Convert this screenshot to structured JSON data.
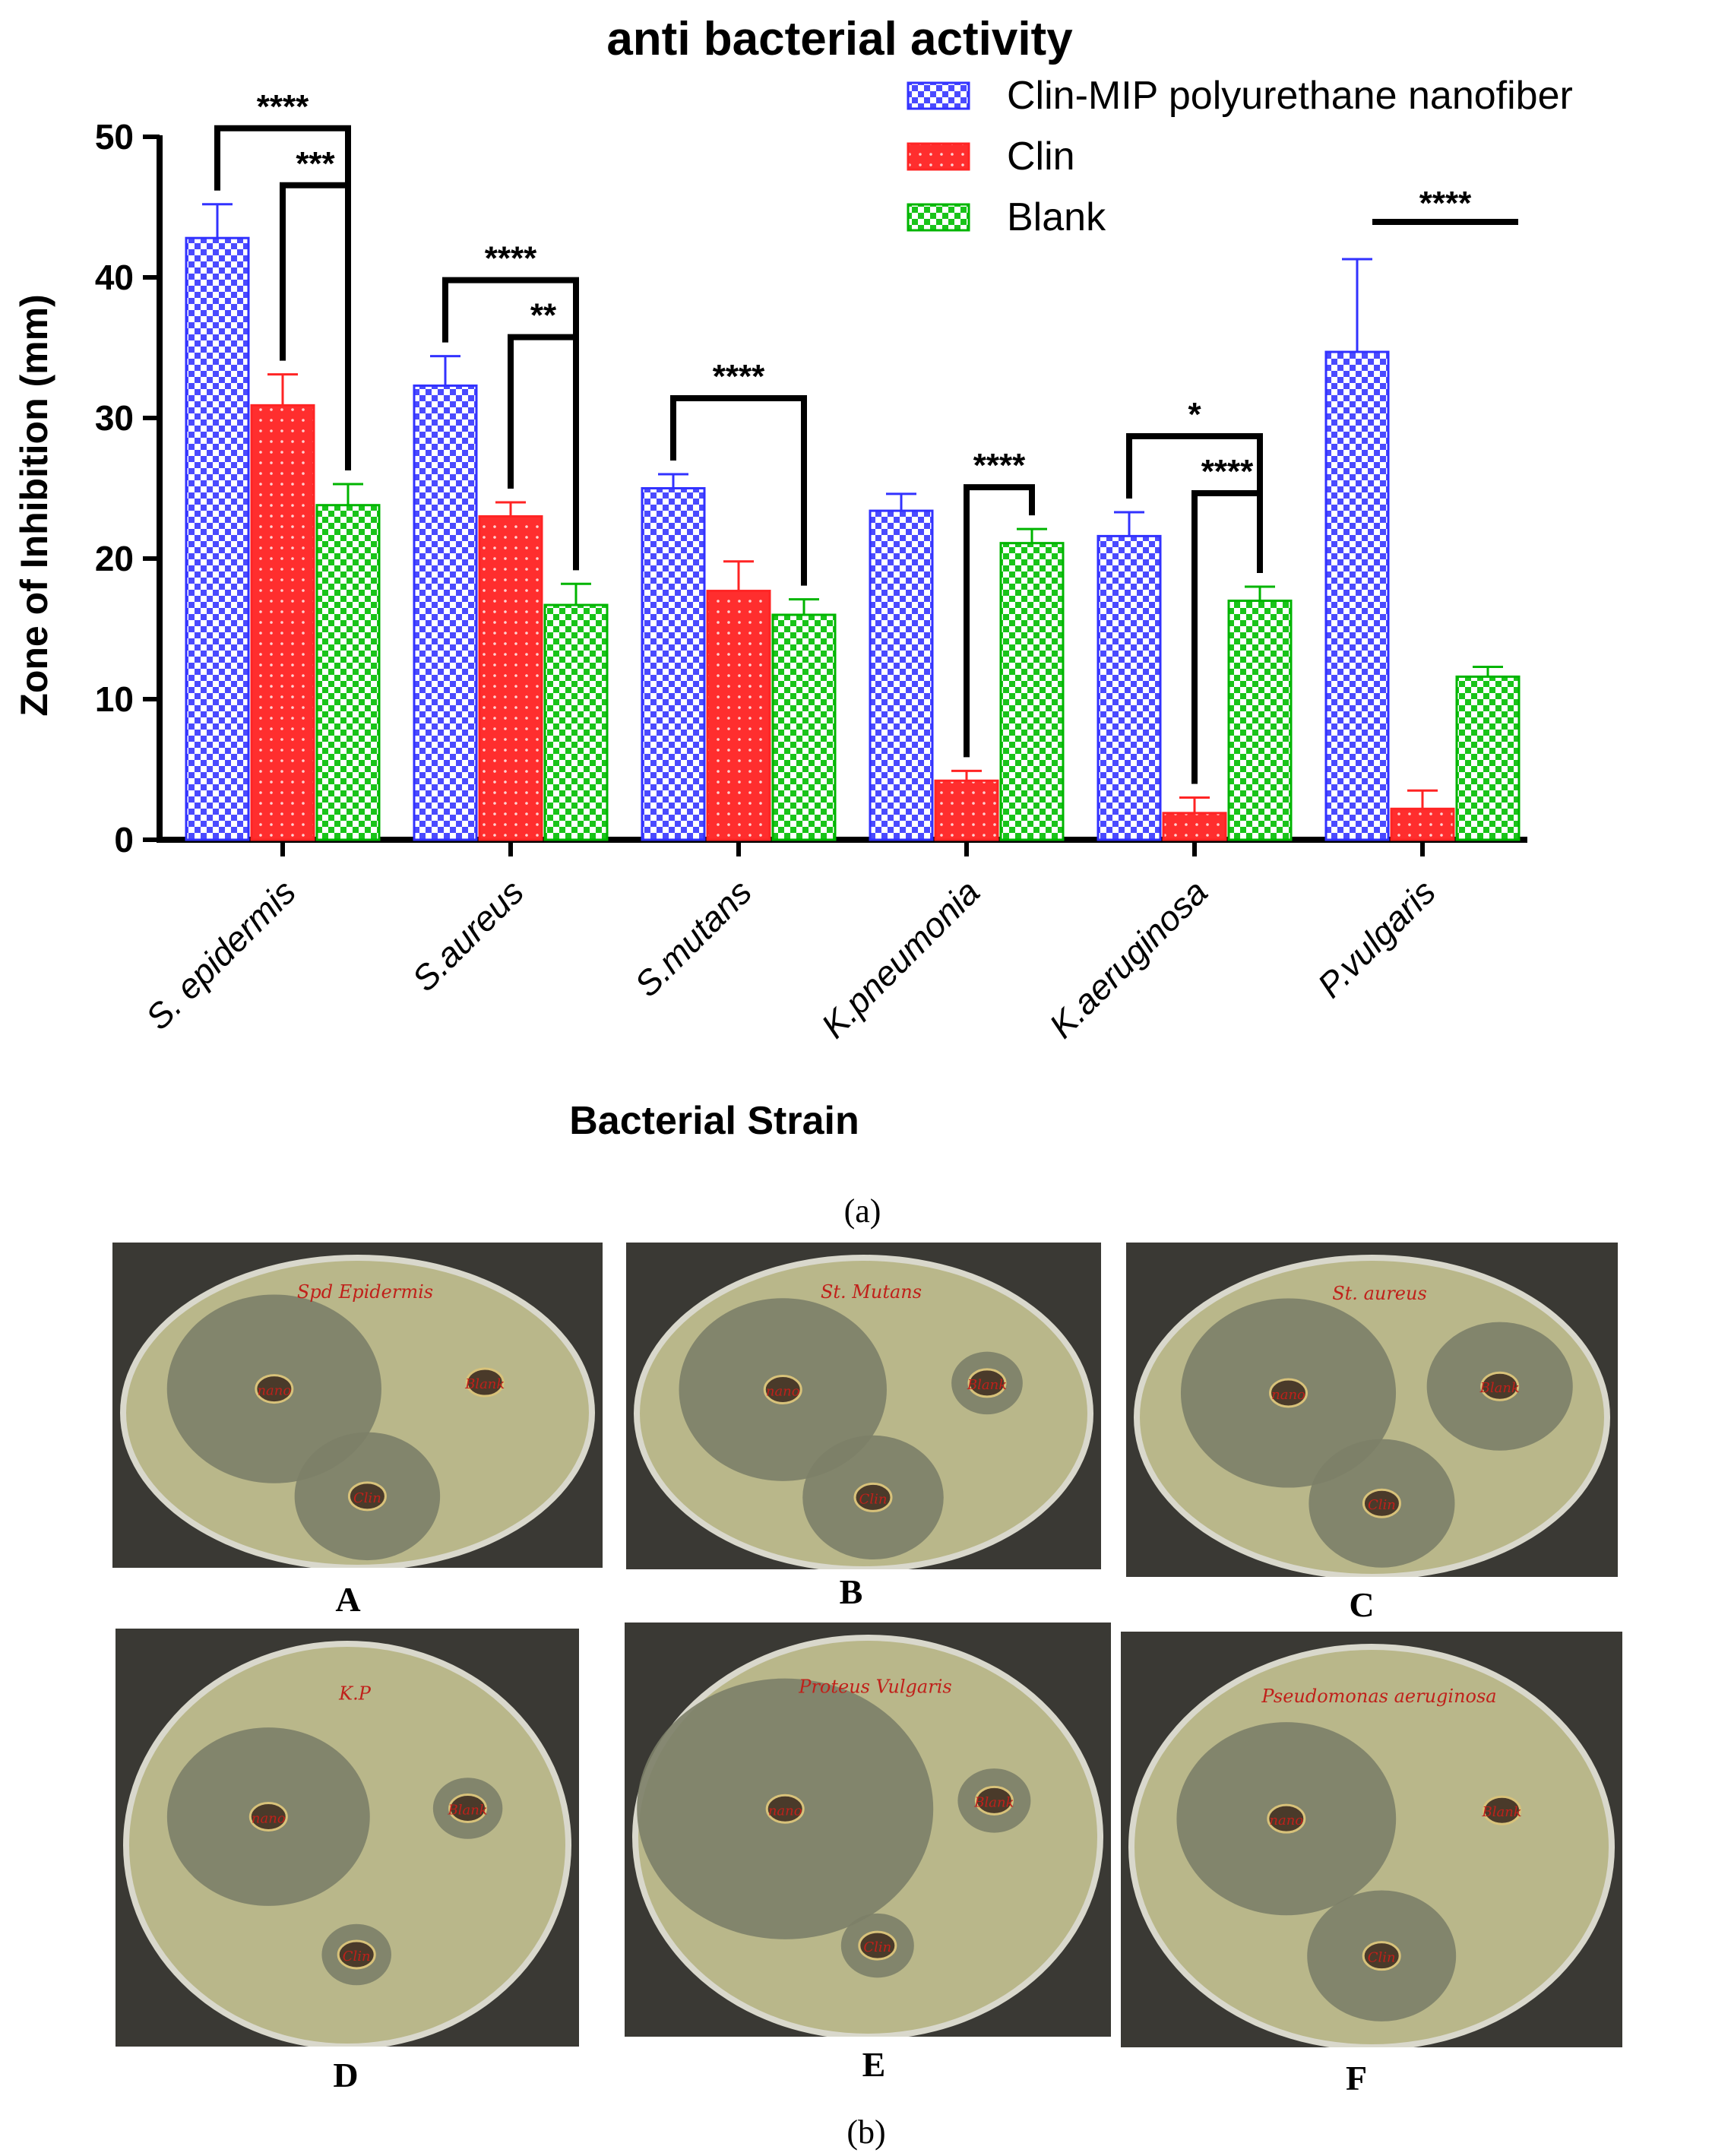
{
  "chart_data": {
    "type": "bar",
    "title": "anti bacterial activity",
    "xlabel": "Bacterial Strain",
    "ylabel": "Zone of Inhibition (mm)",
    "ylim": [
      0,
      50
    ],
    "yticks": [
      "0",
      "10",
      "20",
      "30",
      "40",
      "50"
    ],
    "categories": [
      "S. epidermis",
      "S.aureus",
      "S.mutans",
      "K.pneumonia",
      "K.aeruginosa",
      "P.vulgaris"
    ],
    "legend_position": "top-right",
    "series": [
      {
        "name": "Clin-MIP polyurethane nanofiber",
        "color": "#3c3cff",
        "pattern": "checker",
        "values": [
          42.8,
          32.3,
          25.0,
          23.4,
          21.6,
          34.7
        ],
        "errors": [
          2.4,
          2.1,
          1.0,
          1.2,
          1.7,
          6.6
        ]
      },
      {
        "name": "Clin",
        "color": "#ff2b2b",
        "pattern": "dots",
        "values": [
          30.9,
          23.0,
          17.7,
          4.2,
          1.9,
          2.2
        ],
        "errors": [
          2.2,
          1.0,
          2.1,
          0.7,
          1.1,
          1.3
        ]
      },
      {
        "name": "Blank",
        "color": "#00c000",
        "pattern": "checker",
        "values": [
          23.8,
          16.7,
          16.0,
          21.1,
          17.0,
          11.6
        ],
        "errors": [
          1.5,
          1.5,
          1.1,
          1.0,
          1.0,
          0.7
        ]
      }
    ],
    "significance": [
      {
        "category": 0,
        "from": 0,
        "to": 2,
        "label": "****"
      },
      {
        "category": 0,
        "from": 1,
        "to": 2,
        "label": "***"
      },
      {
        "category": 1,
        "from": 0,
        "to": 2,
        "label": "****"
      },
      {
        "category": 1,
        "from": 1,
        "to": 2,
        "label": "**"
      },
      {
        "category": 2,
        "from": 0,
        "to": 2,
        "label": "****"
      },
      {
        "category": 3,
        "from": 1,
        "to": 2,
        "label": "****"
      },
      {
        "category": 4,
        "from": 0,
        "to": 2,
        "label": "*"
      },
      {
        "category": 4,
        "from": 1,
        "to": 2,
        "label": "****"
      },
      {
        "category": 5,
        "from": 0,
        "to": 2,
        "label": "****"
      }
    ]
  },
  "captions": {
    "a": "(a)",
    "b": "(b)"
  },
  "plates": [
    {
      "label": "A",
      "handwriting": "Spd Epidermis",
      "wells": [
        "nano",
        "Blank",
        "Clin"
      ],
      "zones": [
        "large",
        "none",
        "medium"
      ]
    },
    {
      "label": "B",
      "handwriting": "St. Mutans",
      "wells": [
        "nano",
        "Blank",
        "Clin"
      ],
      "zones": [
        "large",
        "small",
        "medium"
      ]
    },
    {
      "label": "C",
      "handwriting": "St. aureus",
      "wells": [
        "nano",
        "Blank",
        "Clin"
      ],
      "zones": [
        "large",
        "medium",
        "medium"
      ]
    },
    {
      "label": "D",
      "handwriting": "K.P",
      "wells": [
        "nano",
        "Blank",
        "Clin"
      ],
      "zones": [
        "large",
        "small",
        "small"
      ]
    },
    {
      "label": "E",
      "handwriting": "Proteus Vulgaris",
      "wells": [
        "nano",
        "Blank",
        "Clin"
      ],
      "zones": [
        "xlarge",
        "small",
        "small"
      ]
    },
    {
      "label": "F",
      "handwriting": "Pseudomonas aeruginosa",
      "wells": [
        "nano",
        "Blank",
        "Clin"
      ],
      "zones": [
        "large",
        "none",
        "medium"
      ]
    }
  ],
  "colors": {
    "agar": "#b9b78a",
    "agar_dark": "#8f9170",
    "zone": "#7c8068",
    "dish_bg": "#3a3934",
    "ink": "#c0201a"
  }
}
